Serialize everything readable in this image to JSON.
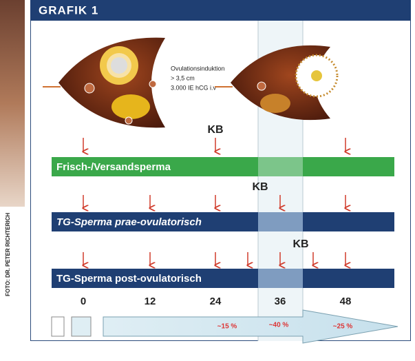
{
  "header": {
    "title": "GRAFIK 1"
  },
  "credit": "FOTO: DR. PETER RICHTERICH",
  "follicle_note": {
    "lines": [
      "Ovulationsinduktion",
      "> 3,5 cm",
      "3.000 IE hCG i.v"
    ]
  },
  "rows": [
    {
      "label": "Frisch-/Versandsperma",
      "marker": "KB"
    },
    {
      "label": "TG-Sperma prae-ovulatorisch",
      "marker": "KB"
    },
    {
      "label": "TG-Sperma post-ovulatorisch",
      "marker": "KB"
    }
  ],
  "timeline": {
    "ticks": [
      "0",
      "12",
      "24",
      "36",
      "48"
    ]
  },
  "rates": [
    "~15 %",
    "~40 %",
    "~25 %"
  ]
}
